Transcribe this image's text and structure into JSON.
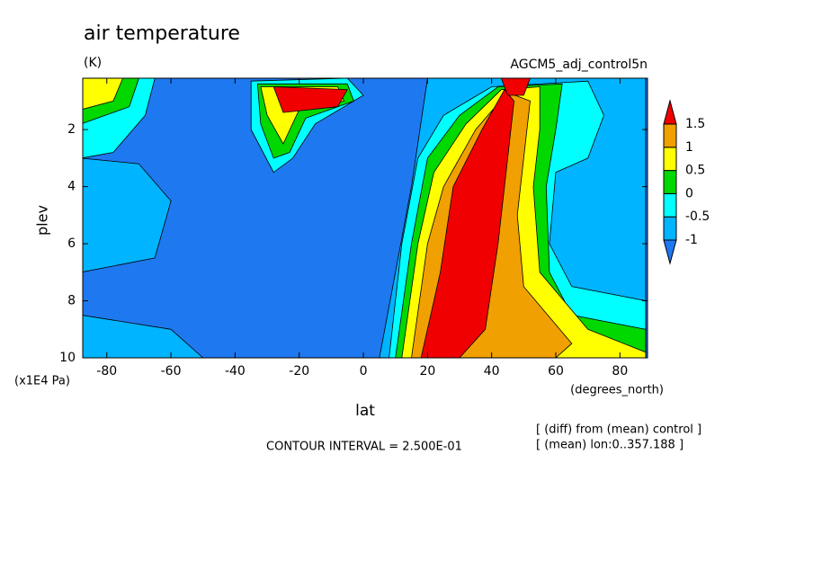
{
  "chart_data": {
    "type": "contour",
    "title": "air temperature",
    "units": "(K)",
    "subtitle": "AGCM5_adj_control5n",
    "x_label": "lat",
    "x_units": "(degrees_north)",
    "y_label": "plev",
    "y_units": "(x1E4 Pa)",
    "xlim": [
      -87.5,
      88.6
    ],
    "ylim": [
      10,
      0.2
    ],
    "xticks": [
      -80,
      -60,
      -40,
      -20,
      0,
      20,
      40,
      60,
      80
    ],
    "yticks": [
      2,
      4,
      6,
      8,
      10
    ],
    "fill_levels": [
      -1,
      -0.5,
      0,
      0.5,
      1,
      1.5
    ],
    "fill_colors": [
      "#1e78f0",
      "#00b4ff",
      "#00ffff",
      "#00d800",
      "#ffff00",
      "#f0a000",
      "#f00000"
    ],
    "contour_interval": "CONTOUR INTERVAL = 2.500E-01",
    "notes": [
      "[ (diff) from (mean) control ]",
      "[ (mean) lon:0..357.188 ]"
    ],
    "regions": [
      {
        "value": -1,
        "lat": [
          -88,
          -70,
          -60,
          -65,
          -88
        ],
        "plev": [
          3,
          3.2,
          4.5,
          6.5,
          7
        ]
      },
      {
        "value": -1,
        "lat": [
          -88,
          -60,
          -50,
          -88
        ],
        "plev": [
          8.5,
          9,
          10,
          10
        ]
      },
      {
        "value": -1,
        "lat": [
          20,
          88,
          88,
          5,
          10,
          15
        ],
        "plev": [
          0.2,
          0.2,
          10,
          10,
          7,
          4
        ]
      },
      {
        "value": -0.5,
        "lat": [
          8,
          12,
          17,
          25,
          40,
          70,
          75,
          70,
          60,
          58,
          65,
          88,
          88
        ],
        "plev": [
          10,
          6,
          3,
          1.5,
          0.5,
          0.3,
          1.5,
          3,
          3.5,
          6,
          7.5,
          8,
          10
        ]
      },
      {
        "value": 0,
        "lat": [
          10,
          15,
          20,
          30,
          42,
          62,
          60,
          57,
          58,
          65,
          88,
          88
        ],
        "plev": [
          10,
          6,
          3,
          1.5,
          0.5,
          0.4,
          2,
          4,
          7,
          8.5,
          9,
          10
        ]
      },
      {
        "value": 0.5,
        "lat": [
          12,
          17,
          22,
          32,
          43,
          55,
          55,
          53,
          55,
          70,
          88,
          88
        ],
        "plev": [
          10,
          6,
          3.5,
          1.8,
          0.6,
          0.5,
          2,
          4,
          7,
          9,
          9.8,
          10
        ]
      },
      {
        "value": 1,
        "lat": [
          15,
          20,
          25,
          35,
          45,
          52,
          50,
          48,
          50,
          65,
          60
        ],
        "plev": [
          10,
          6,
          4,
          2,
          0.7,
          1,
          3,
          5,
          7.5,
          9.5,
          10
        ]
      },
      {
        "value": 1.5,
        "lat": [
          18,
          24,
          28,
          37,
          44,
          47,
          45,
          42,
          38,
          30
        ],
        "plev": [
          10,
          7,
          4,
          2,
          0.6,
          1,
          3,
          6,
          9,
          10
        ]
      },
      {
        "value": 1.5,
        "lat": [
          43,
          52,
          50,
          45
        ],
        "plev": [
          0.2,
          0.2,
          0.8,
          0.8
        ]
      },
      {
        "value": -0.5,
        "lat": [
          -88,
          -65,
          -68,
          -78,
          -88
        ],
        "plev": [
          0.2,
          0.2,
          1.5,
          2.8,
          3
        ]
      },
      {
        "value": 0,
        "lat": [
          -88,
          -70,
          -73,
          -88
        ],
        "plev": [
          0.2,
          0.2,
          1.2,
          1.8
        ]
      },
      {
        "value": 0.5,
        "lat": [
          -88,
          -75,
          -78,
          -88
        ],
        "plev": [
          0.2,
          0.2,
          1,
          1.3
        ]
      },
      {
        "value": -0.5,
        "lat": [
          -35,
          -5,
          0,
          -15,
          -22,
          -28,
          -35
        ],
        "plev": [
          0.3,
          0.2,
          0.8,
          1.8,
          3,
          3.5,
          2
        ]
      },
      {
        "value": 0,
        "lat": [
          -33,
          -5,
          -3,
          -18,
          -23,
          -28,
          -32
        ],
        "plev": [
          0.4,
          0.4,
          1,
          1.6,
          2.8,
          3,
          1.8
        ]
      },
      {
        "value": 0.5,
        "lat": [
          -32,
          -8,
          -6,
          -20,
          -25,
          -30
        ],
        "plev": [
          0.5,
          0.5,
          1,
          1.3,
          2.5,
          1.5
        ]
      },
      {
        "value": 1.5,
        "lat": [
          -28,
          -5,
          -8,
          -25
        ],
        "plev": [
          0.5,
          0.6,
          1.2,
          1.4
        ]
      }
    ]
  }
}
